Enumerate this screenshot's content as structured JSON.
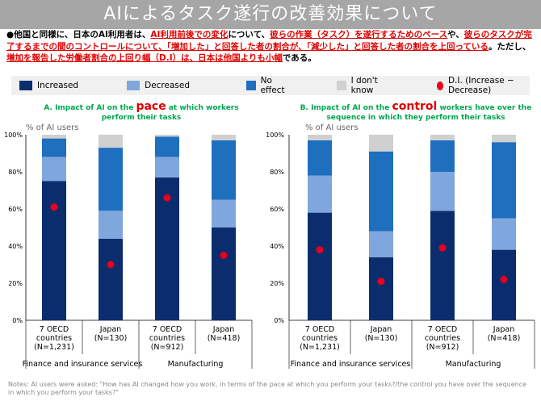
{
  "page": {
    "title": "AIによるタスク遂行の改善効果について",
    "intro_parts": [
      {
        "text": "●他国と同様に、日本のAI利用者は、",
        "red": false
      },
      {
        "text": "AI利用前後での変化",
        "red": true
      },
      {
        "text": "について、",
        "red": false
      },
      {
        "text": "彼らの作業（タスク）を遂行するためのペース",
        "red": true
      },
      {
        "text": "や、",
        "red": false
      },
      {
        "text": "彼らのタスクが完了するまでの間のコントロールについて、「増加した」と回答した者の割合が、「減少した」と回答した者の割合を上回っている",
        "red": true
      },
      {
        "text": "。ただし、",
        "red": false
      },
      {
        "text": "増加を報告した労働者割合の上回り幅（D.I）は、日本は他国よりも小幅",
        "red": true
      },
      {
        "text": "である。",
        "red": false
      }
    ],
    "notes": "Notes: AI users were asked: \"How has AI changed how you work, in terms of the pace at which you perform your tasks?/the control you have over the sequence in which you perform your tasks?\""
  },
  "legend": [
    {
      "label": "Increased",
      "color": "#0b2d6e"
    },
    {
      "label": "Decreased",
      "color": "#7fa7dd"
    },
    {
      "label": "No effect",
      "color": "#1f6fbf"
    },
    {
      "label": "I don't know",
      "color": "#d0d0d0"
    },
    {
      "label": "D.I. (Increase − Decrease)",
      "color": "#e8001c"
    }
  ],
  "panels": {
    "a": {
      "title_pre": "A. Impact of AI on the ",
      "title_big": "pace",
      "title_post": " at which workers perform their tasks",
      "unit": "% of AI users"
    },
    "b": {
      "title_pre": "B. Impact of AI on the ",
      "title_big": "control",
      "title_post": " workers have over the sequence in which they perform their tasks",
      "unit": "% of AI users"
    }
  },
  "chart_data": [
    {
      "type": "bar",
      "stacked": true,
      "title": "A. Impact of AI on the pace at which workers perform their tasks",
      "ylabel": "% of AI users",
      "ylim": [
        0,
        100
      ],
      "yticks": [
        "0%",
        "20%",
        "40%",
        "60%",
        "80%",
        "100%"
      ],
      "categories": [
        [
          "7 OECD",
          "countries",
          "(N=1,231)"
        ],
        [
          "Japan",
          "(N=130)"
        ],
        [
          "7 OECD",
          "countries",
          "(N=912)"
        ],
        [
          "Japan",
          "(N=418)"
        ]
      ],
      "groups": [
        {
          "label": "Finance and insurance services",
          "span": [
            0,
            1
          ]
        },
        {
          "label": "Manufacturing",
          "span": [
            2,
            3
          ]
        }
      ],
      "series": [
        {
          "name": "Increased",
          "values": [
            75,
            44,
            77,
            50
          ]
        },
        {
          "name": "Decreased",
          "values": [
            13,
            15,
            11,
            15
          ]
        },
        {
          "name": "No effect",
          "values": [
            10,
            34,
            11,
            32
          ]
        },
        {
          "name": "I don't know",
          "values": [
            2,
            7,
            1,
            3
          ]
        }
      ],
      "di": [
        61,
        30,
        66,
        35
      ]
    },
    {
      "type": "bar",
      "stacked": true,
      "title": "B. Impact of AI on the control workers have over the sequence in which they perform their tasks",
      "ylabel": "% of AI users",
      "ylim": [
        0,
        100
      ],
      "yticks": [
        "0%",
        "20%",
        "40%",
        "60%",
        "80%",
        "100%"
      ],
      "categories": [
        [
          "7 OECD",
          "countries",
          "(N=1,231)"
        ],
        [
          "Japan",
          "(N=130)"
        ],
        [
          "7 OECD",
          "countries",
          "(N=912)"
        ],
        [
          "Japan",
          "(N=418)"
        ]
      ],
      "groups": [
        {
          "label": "Finance and insurance services",
          "span": [
            0,
            1
          ]
        },
        {
          "label": "Manufacturing",
          "span": [
            2,
            3
          ]
        }
      ],
      "series": [
        {
          "name": "Increased",
          "values": [
            58,
            34,
            59,
            38
          ]
        },
        {
          "name": "Decreased",
          "values": [
            20,
            14,
            21,
            17
          ]
        },
        {
          "name": "No effect",
          "values": [
            19,
            43,
            17,
            41
          ]
        },
        {
          "name": "I don't know",
          "values": [
            3,
            9,
            3,
            4
          ]
        }
      ],
      "di": [
        38,
        21,
        39,
        22
      ]
    }
  ]
}
